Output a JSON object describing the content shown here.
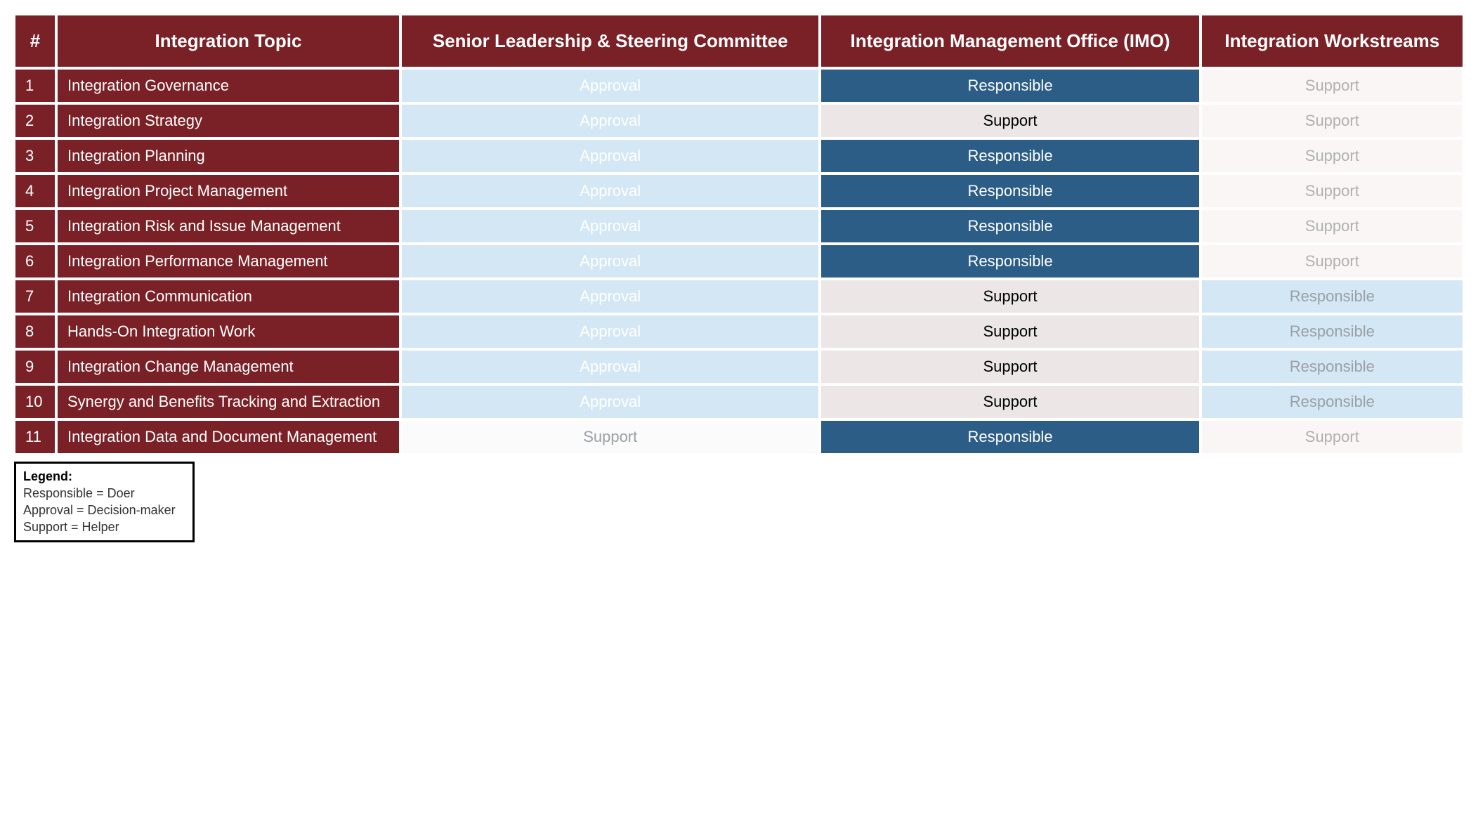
{
  "table": {
    "headers": {
      "num": "#",
      "topic": "Integration Topic",
      "col1": "Senior Leadership & Steering Committee",
      "col2": "Integration Management Office (IMO)",
      "col3": "Integration Workstreams"
    },
    "rows": [
      {
        "num": "1",
        "topic": "Integration Governance",
        "c1": {
          "text": "Approval",
          "style": "approval"
        },
        "c2": {
          "text": "Responsible",
          "style": "responsible-dark"
        },
        "c3": {
          "text": "Support",
          "style": "support-grey-pink"
        }
      },
      {
        "num": "2",
        "topic": "Integration Strategy",
        "c1": {
          "text": "Approval",
          "style": "approval"
        },
        "c2": {
          "text": "Support",
          "style": "support-black"
        },
        "c3": {
          "text": "Support",
          "style": "support-grey-pink"
        }
      },
      {
        "num": "3",
        "topic": "Integration Planning",
        "c1": {
          "text": "Approval",
          "style": "approval"
        },
        "c2": {
          "text": "Responsible",
          "style": "responsible-dark"
        },
        "c3": {
          "text": "Support",
          "style": "support-grey-pink"
        }
      },
      {
        "num": "4",
        "topic": "Integration Project Management",
        "c1": {
          "text": "Approval",
          "style": "approval"
        },
        "c2": {
          "text": "Responsible",
          "style": "responsible-dark"
        },
        "c3": {
          "text": "Support",
          "style": "support-grey-pink"
        }
      },
      {
        "num": "5",
        "topic": "Integration Risk and Issue Management",
        "c1": {
          "text": "Approval",
          "style": "approval"
        },
        "c2": {
          "text": "Responsible",
          "style": "responsible-dark"
        },
        "c3": {
          "text": "Support",
          "style": "support-grey-pink"
        }
      },
      {
        "num": "6",
        "topic": "Integration Performance Management",
        "c1": {
          "text": "Approval",
          "style": "approval"
        },
        "c2": {
          "text": "Responsible",
          "style": "responsible-dark"
        },
        "c3": {
          "text": "Support",
          "style": "support-grey-pink"
        }
      },
      {
        "num": "7",
        "topic": "Integration Communication",
        "c1": {
          "text": "Approval",
          "style": "approval"
        },
        "c2": {
          "text": "Support",
          "style": "support-black"
        },
        "c3": {
          "text": "Responsible",
          "style": "responsible-light"
        }
      },
      {
        "num": "8",
        "topic": "Hands-On Integration Work",
        "c1": {
          "text": "Approval",
          "style": "approval"
        },
        "c2": {
          "text": "Support",
          "style": "support-black"
        },
        "c3": {
          "text": "Responsible",
          "style": "responsible-light"
        }
      },
      {
        "num": "9",
        "topic": "Integration Change Management",
        "c1": {
          "text": "Approval",
          "style": "approval"
        },
        "c2": {
          "text": "Support",
          "style": "support-black"
        },
        "c3": {
          "text": "Responsible",
          "style": "responsible-light"
        }
      },
      {
        "num": "10",
        "topic": "Synergy and Benefits Tracking and Extraction",
        "c1": {
          "text": "Approval",
          "style": "approval"
        },
        "c2": {
          "text": "Support",
          "style": "support-black"
        },
        "c3": {
          "text": "Responsible",
          "style": "responsible-light"
        }
      },
      {
        "num": "11",
        "topic": "Integration Data and Document Management",
        "c1": {
          "text": "Support",
          "style": "support-grey-white"
        },
        "c2": {
          "text": "Responsible",
          "style": "responsible-dark"
        },
        "c3": {
          "text": "Support",
          "style": "support-grey-pink"
        }
      }
    ]
  },
  "legend": {
    "title": "Legend:",
    "line1": "Responsible = Doer",
    "line2": "Approval = Decision-maker",
    "line3": "Support = Helper"
  },
  "colors": {
    "header_bg": "#7a2127",
    "approval_bg": "#d3e7f5",
    "responsible_dark_bg": "#2c5d87",
    "responsible_light_bg": "#d3e7f5",
    "support_black_bg": "#ece6e6",
    "support_grey_pink_bg": "#faf6f6",
    "support_grey_white_bg": "#fbfbfb"
  }
}
